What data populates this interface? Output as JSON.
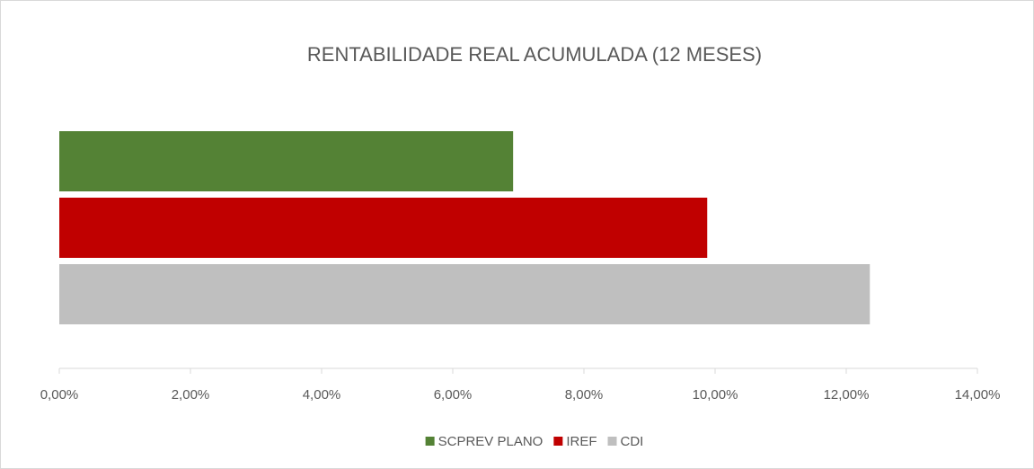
{
  "chart_data": {
    "type": "bar",
    "orientation": "horizontal",
    "title": "RENTABILIDADE REAL ACUMULADA (12 MESES)",
    "categories": [
      null
    ],
    "series": [
      {
        "name": "SCPREV PLANO",
        "color": "#548235",
        "values": [
          6.92
        ]
      },
      {
        "name": "IREF",
        "color": "#c00000",
        "values": [
          9.88
        ]
      },
      {
        "name": "CDI",
        "color": "#bfbfbf",
        "values": [
          12.36
        ]
      }
    ],
    "xlim": [
      0,
      14
    ],
    "xticks": [
      {
        "value": 0,
        "label": "0,00%"
      },
      {
        "value": 2,
        "label": "2,00%"
      },
      {
        "value": 4,
        "label": "4,00%"
      },
      {
        "value": 6,
        "label": "6,00%"
      },
      {
        "value": 8,
        "label": "8,00%"
      },
      {
        "value": 10,
        "label": "10,00%"
      },
      {
        "value": 12,
        "label": "12,00%"
      },
      {
        "value": 14,
        "label": "14,00%"
      }
    ],
    "grid": false,
    "legend": "bottom"
  }
}
